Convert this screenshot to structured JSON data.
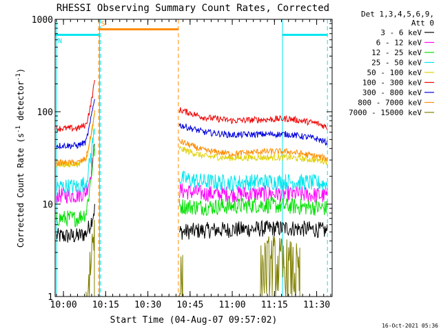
{
  "chart_data": {
    "type": "line",
    "title": "RHESSI Observing Summary Count Rates, Corrected",
    "xlabel": "Start Time (04-Aug-07 09:57:02)",
    "ylabel": "Corrected Count Rate (s⁻¹ detector⁻¹)",
    "ylabel_base": "Corrected Count Rate (s",
    "ylabel_sup1": "-1",
    "ylabel_mid": " detector",
    "ylabel_sup2": "-1",
    "ylabel_end": ")",
    "y_scale": "log",
    "xlim": [
      "09:57:02",
      "11:35:30"
    ],
    "ylim": [
      1,
      1000
    ],
    "x_ticks": [
      "10:00",
      "10:15",
      "10:30",
      "10:45",
      "11:00",
      "11:15",
      "11:30"
    ],
    "y_ticks": [
      "1",
      "10",
      "100",
      "1000"
    ],
    "legend_header": [
      "Det 1,3,4,5,6,9,",
      "Att 0"
    ],
    "legend_position": "right",
    "timestamp": "16-Oct-2021 05:36",
    "flags": [
      {
        "label": "S",
        "color": "#ff8c00",
        "start": "10:12:20",
        "end": "10:40:50",
        "level": 780
      },
      {
        "label": "N",
        "color": "#00e5ee",
        "start": "09:57:02",
        "end": "10:12:40",
        "level": 680
      },
      {
        "label": "",
        "color": "#00e5ee",
        "start": "11:17:50",
        "end": "11:33:50",
        "level": 680
      }
    ],
    "vertical_lines": [
      {
        "time": "09:57:30",
        "color": "#00e5ee",
        "style": "solid"
      },
      {
        "time": "10:12:50",
        "color": "#00e5ee",
        "style": "solid"
      },
      {
        "time": "10:13:10",
        "color": "#00e5ee",
        "style": "dashed"
      },
      {
        "time": "10:12:30",
        "color": "#ff8c00",
        "style": "dashed"
      },
      {
        "time": "10:40:50",
        "color": "#ff8c00",
        "style": "dashed"
      },
      {
        "time": "11:17:50",
        "color": "#00e5ee",
        "style": "solid"
      },
      {
        "time": "11:33:50",
        "color": "#00e5ee",
        "style": "dashed"
      }
    ],
    "series": [
      {
        "name": "3 - 6 keV",
        "color": "#000000",
        "segments": [
          {
            "t": [
              "09:57:30",
              "10:05:00",
              "10:08:00",
              "10:09:30",
              "10:11:10"
            ],
            "y": [
              4.5,
              4.5,
              4.8,
              6,
              9
            ]
          },
          {
            "t": [
              "10:41:10",
              "10:50:00",
              "11:00:00",
              "11:10:00",
              "11:20:00",
              "11:30:00",
              "11:33:50"
            ],
            "y": [
              5,
              5.2,
              5.3,
              5.4,
              5.5,
              5.3,
              5.1
            ]
          }
        ]
      },
      {
        "name": "6 - 12 keV",
        "color": "#ff00ff",
        "segments": [
          {
            "t": [
              "09:57:30",
              "10:05:00",
              "10:08:00",
              "10:09:30",
              "10:11:10"
            ],
            "y": [
              12.5,
              12.5,
              13.5,
              20,
              45
            ]
          },
          {
            "t": [
              "10:41:10",
              "10:50:00",
              "11:00:00",
              "11:10:00",
              "11:20:00",
              "11:30:00",
              "11:33:50"
            ],
            "y": [
              14,
              13,
              12.8,
              13,
              13,
              12.5,
              12.2
            ]
          }
        ]
      },
      {
        "name": "12 - 25 keV",
        "color": "#00e000",
        "segments": [
          {
            "t": [
              "09:57:30",
              "10:05:00",
              "10:08:00",
              "10:09:30",
              "10:11:10"
            ],
            "y": [
              7,
              7,
              8,
              16,
              45
            ]
          },
          {
            "t": [
              "10:41:10",
              "10:50:00",
              "11:00:00",
              "11:10:00",
              "11:20:00",
              "11:30:00",
              "11:33:50"
            ],
            "y": [
              9.5,
              9.3,
              9.5,
              9.8,
              9.5,
              9.2,
              9
            ]
          }
        ]
      },
      {
        "name": "25 - 50 keV",
        "color": "#00e5ee",
        "segments": [
          {
            "t": [
              "09:57:30",
              "10:05:00",
              "10:08:00",
              "10:09:30",
              "10:11:10"
            ],
            "y": [
              15.5,
              15.5,
              17,
              30,
              70
            ]
          },
          {
            "t": [
              "10:41:10",
              "10:50:00",
              "11:00:00",
              "11:10:00",
              "11:20:00",
              "11:30:00",
              "11:33:50"
            ],
            "y": [
              19,
              17.5,
              17,
              17.5,
              17.5,
              17,
              16.5
            ]
          }
        ]
      },
      {
        "name": "50 - 100 keV",
        "color": "#e0d000",
        "segments": [
          {
            "t": [
              "09:57:30",
              "10:05:00",
              "10:08:00",
              "10:09:30",
              "10:11:10"
            ],
            "y": [
              27,
              27,
              30,
              48,
              95
            ]
          },
          {
            "t": [
              "10:41:10",
              "10:50:00",
              "11:00:00",
              "11:10:00",
              "11:20:00",
              "11:30:00",
              "11:33:50"
            ],
            "y": [
              40,
              33,
              31.5,
              32,
              32,
              30,
              29
            ]
          }
        ]
      },
      {
        "name": "100 - 300 keV",
        "color": "#ee0000",
        "segments": [
          {
            "t": [
              "09:57:30",
              "10:05:00",
              "10:08:00",
              "10:09:30",
              "10:11:10"
            ],
            "y": [
              66,
              66,
              72,
              110,
              220
            ]
          },
          {
            "t": [
              "10:41:10",
              "10:50:00",
              "11:00:00",
              "11:10:00",
              "11:20:00",
              "11:30:00",
              "11:33:50"
            ],
            "y": [
              105,
              87,
              80,
              82,
              84,
              75,
              68
            ]
          }
        ]
      },
      {
        "name": "300 - 800 keV",
        "color": "#0000dd",
        "segments": [
          {
            "t": [
              "09:57:30",
              "10:05:00",
              "10:08:00",
              "10:09:30",
              "10:11:10"
            ],
            "y": [
              43,
              43,
              47,
              75,
              150
            ]
          },
          {
            "t": [
              "10:41:10",
              "10:50:00",
              "11:00:00",
              "11:10:00",
              "11:20:00",
              "11:30:00",
              "11:33:50"
            ],
            "y": [
              72,
              60,
              56,
              57,
              57,
              51,
              46
            ]
          }
        ]
      },
      {
        "name": "800 - 7000 keV",
        "color": "#ff8c00",
        "segments": [
          {
            "t": [
              "09:57:30",
              "10:05:00",
              "10:08:00",
              "10:09:30",
              "10:11:10"
            ],
            "y": [
              28,
              28,
              31,
              50,
              100
            ]
          },
          {
            "t": [
              "10:41:10",
              "10:50:00",
              "11:00:00",
              "11:10:00",
              "11:20:00",
              "11:30:00",
              "11:33:50"
            ],
            "y": [
              48,
              38,
              35,
              37,
              37,
              33,
              31
            ]
          }
        ]
      },
      {
        "name": "7000 - 15000 keV",
        "color": "#808000",
        "segments": [
          {
            "t": [
              "10:08:00",
              "10:09:00",
              "10:10:00",
              "10:11:00"
            ],
            "y": [
              1,
              1.5,
              3,
              6
            ]
          },
          {
            "t": [
              "10:41:10",
              "10:42:30"
            ],
            "y": [
              1.6,
              1.3
            ]
          },
          {
            "t": [
              "11:10:00",
              "11:14:00",
              "11:18:00",
              "11:22:00",
              "11:24:00"
            ],
            "y": [
              1.8,
              2.2,
              2,
              1.8,
              1.6
            ]
          }
        ]
      }
    ]
  }
}
